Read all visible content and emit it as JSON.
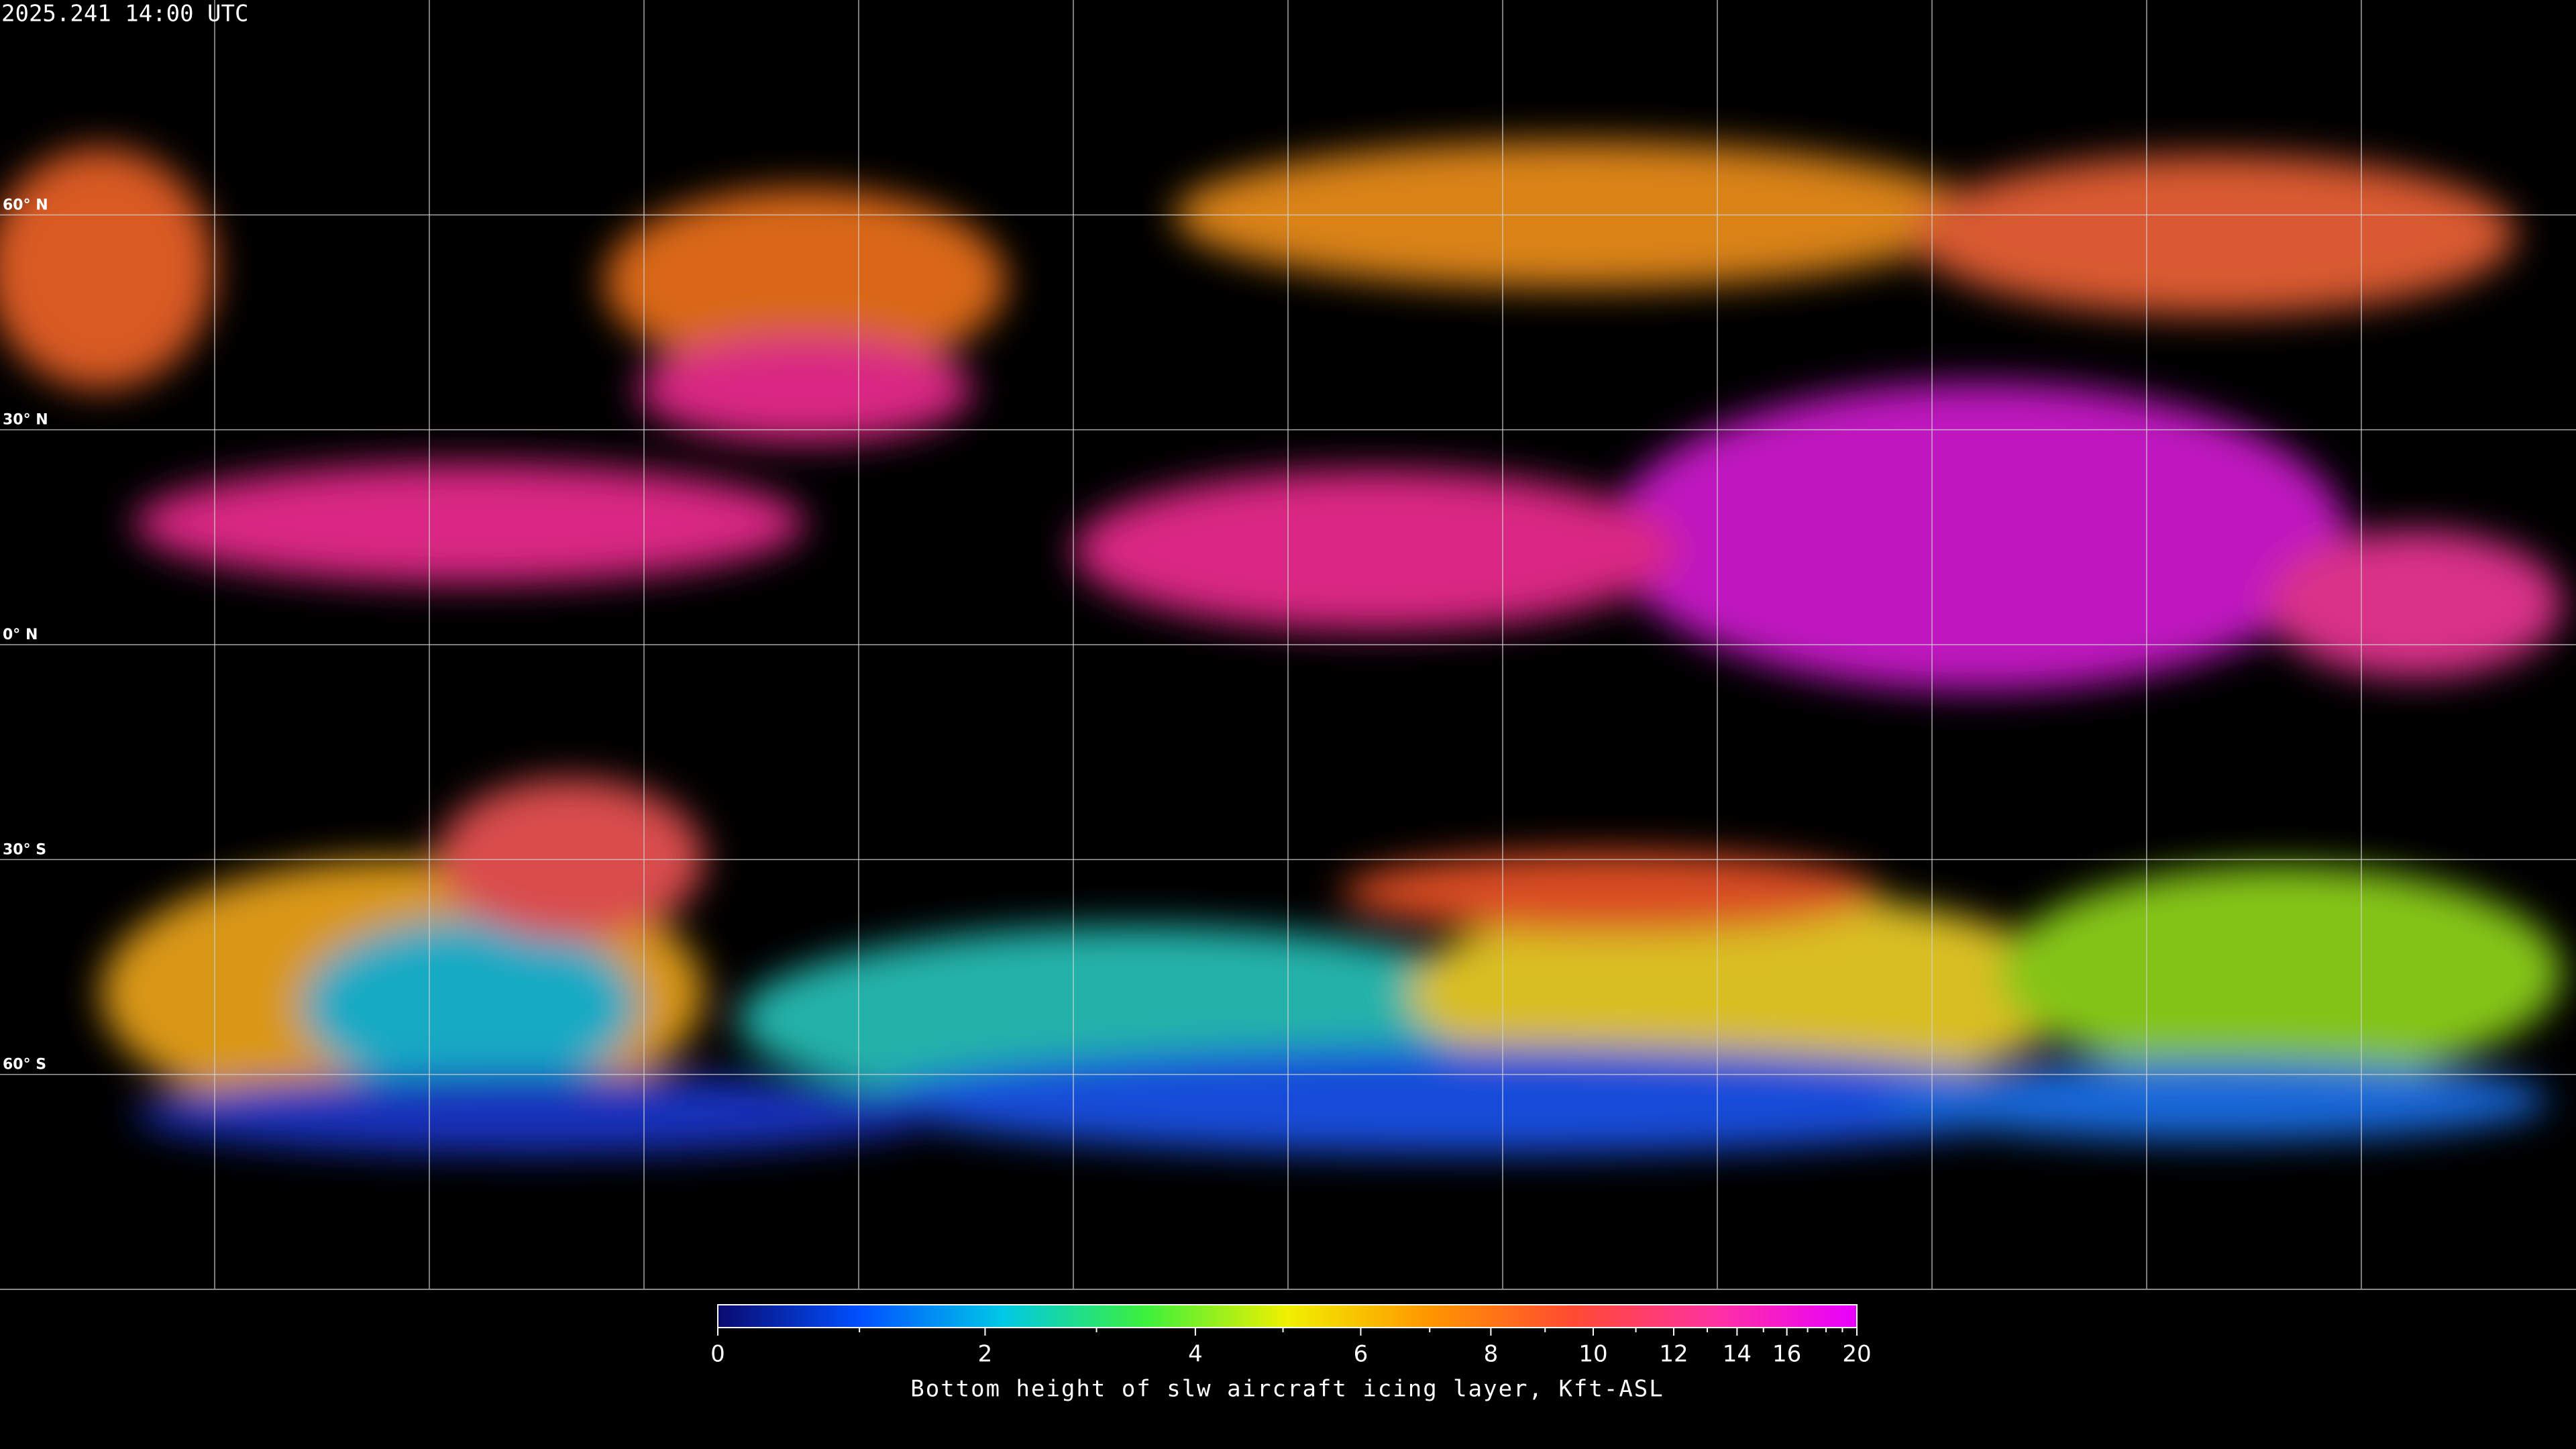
{
  "header": {
    "timestamp": "2025.241 14:00 UTC"
  },
  "map": {
    "lat_lines": [
      {
        "value": 60,
        "label": "60° N"
      },
      {
        "value": 30,
        "label": "30° N"
      },
      {
        "value": 0,
        "label": "0° N"
      },
      {
        "value": -30,
        "label": "30° S"
      },
      {
        "value": -60,
        "label": "60° S"
      }
    ],
    "lon_lines": [
      -150,
      -120,
      -90,
      -60,
      -30,
      0,
      30,
      60,
      90,
      120,
      150
    ],
    "latlim": [
      90,
      -90
    ],
    "lonlim": [
      -180,
      180
    ],
    "grid_color": "#cfcfcf"
  },
  "colorbar": {
    "title": "Bottom height of slw aircraft icing layer, Kft-ASL",
    "lim": [
      0,
      20
    ],
    "ticks": [
      0,
      2,
      4,
      6,
      8,
      10,
      12,
      14,
      16,
      20
    ],
    "minor_ticks": [
      1,
      3,
      5,
      7,
      9,
      11,
      13,
      15,
      17,
      18,
      19
    ],
    "colors": [
      "#0a0a6e",
      "#0050ff",
      "#00c8e6",
      "#3cf03c",
      "#f0f000",
      "#ff9600",
      "#ff4b32",
      "#ff32a0",
      "#e600ff"
    ]
  }
}
